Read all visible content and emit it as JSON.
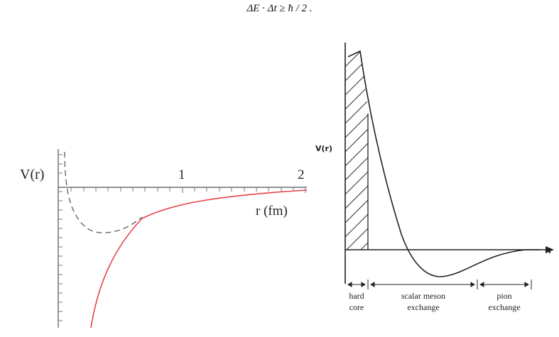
{
  "formula": "ΔE · Δt ≥ ħ / 2 .",
  "left_figure": {
    "y_axis_label": "V(r)",
    "x_tick_labels": [
      "1",
      "2"
    ],
    "x_axis_label": "r (fm)",
    "colors": {
      "attractive_curve": "#e8414a",
      "dashed_curve": "#666666"
    }
  },
  "right_figure": {
    "y_axis_label": "V(r)",
    "x_axis_label": "r",
    "regions": [
      {
        "line1": "hard",
        "line2": "core"
      },
      {
        "line1": "scalar meson",
        "line2": "exchange"
      },
      {
        "line1": "pion",
        "line2": "exchange"
      }
    ]
  }
}
